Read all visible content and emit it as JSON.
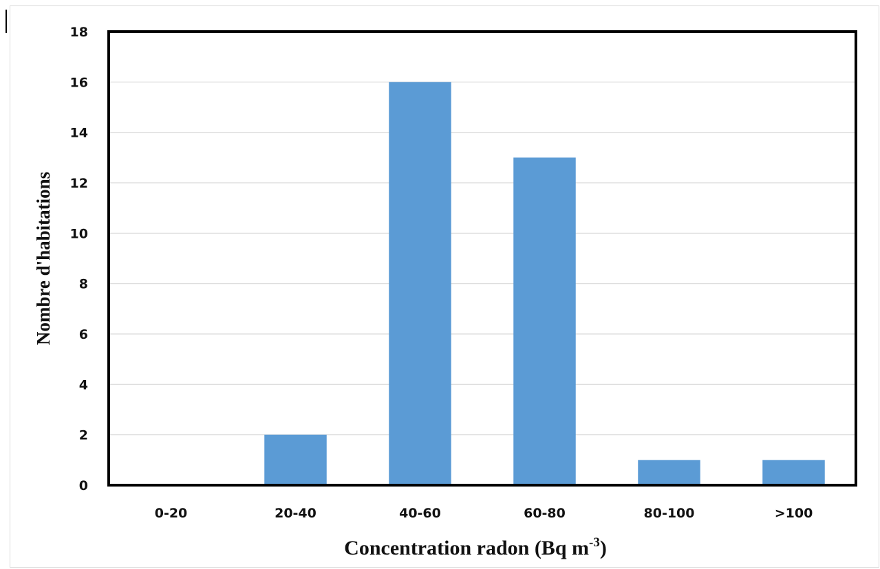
{
  "chart_data": {
    "type": "bar",
    "categories": [
      "0-20",
      "20-40",
      "40-60",
      "60-80",
      "80-100",
      ">100"
    ],
    "values": [
      0,
      2,
      16,
      13,
      1,
      1
    ],
    "xlabel": "Concentration radon (Bq m",
    "xlabel_superscript": "-3",
    "xlabel_suffix": ")",
    "ylabel": "Nombre d'habitations",
    "ylim": [
      0,
      18
    ],
    "yticks": [
      0,
      2,
      4,
      6,
      8,
      10,
      12,
      14,
      16,
      18
    ],
    "bar_color": "#5b9bd5",
    "grid": true
  }
}
